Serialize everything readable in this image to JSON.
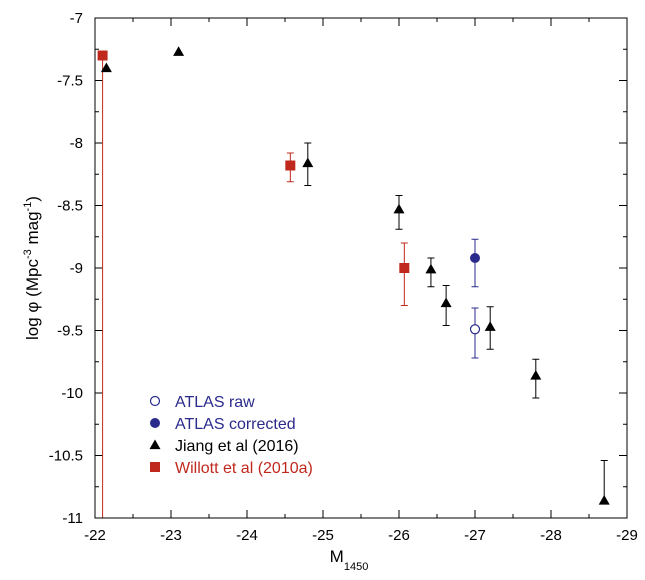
{
  "colors": {
    "atlas": "#2a2a8c",
    "jiang": "#000000",
    "willott": "#c0281e"
  },
  "chart_data": {
    "type": "scatter",
    "xlabel_main": "M",
    "xlabel_sub": "1450",
    "ylabel": "log φ (Mpc",
    "ylabel_sup1": "-3",
    "ylabel_mid": " mag",
    "ylabel_sup2": "-1",
    "ylabel_end": ")",
    "xlim": [
      -22,
      -29
    ],
    "ylim": [
      -11,
      -7
    ],
    "x_ticks": [
      -22,
      -23,
      -24,
      -25,
      -26,
      -27,
      -28,
      -29
    ],
    "y_ticks": [
      -7,
      -7.5,
      -8,
      -8.5,
      -9,
      -9.5,
      -10,
      -10.5,
      -11
    ],
    "x_tick_labels": [
      "-22",
      "-23",
      "-24",
      "-25",
      "-26",
      "-27",
      "-28",
      "-29"
    ],
    "y_tick_labels": [
      "-7",
      "-7.5",
      "-8",
      "-8.5",
      "-9",
      "-9.5",
      "-10",
      "-10.5",
      "-11"
    ],
    "legend_position": "bottom-left",
    "series": [
      {
        "name": "ATLAS raw",
        "marker": "open-circle",
        "color": "#2a2a8c",
        "points": [
          {
            "x": -27.0,
            "y": -9.49,
            "y_low": -9.72,
            "y_high": -9.32
          }
        ]
      },
      {
        "name": "ATLAS corrected",
        "marker": "filled-circle",
        "color": "#2a2a8c",
        "points": [
          {
            "x": -27.0,
            "y": -8.92,
            "y_low": -9.15,
            "y_high": -8.77
          }
        ]
      },
      {
        "name": "Jiang et al (2016)",
        "marker": "triangle",
        "color": "#000000",
        "points": [
          {
            "x": -22.15,
            "y": -7.4,
            "y_low": null,
            "y_high": null
          },
          {
            "x": -23.1,
            "y": -7.27,
            "y_low": null,
            "y_high": null
          },
          {
            "x": -24.8,
            "y": -8.16,
            "y_low": -8.34,
            "y_high": -8.0
          },
          {
            "x": -26.0,
            "y": -8.53,
            "y_low": -8.69,
            "y_high": -8.42
          },
          {
            "x": -26.42,
            "y": -9.01,
            "y_low": -9.15,
            "y_high": -8.92
          },
          {
            "x": -26.62,
            "y": -9.28,
            "y_low": -9.46,
            "y_high": -9.14
          },
          {
            "x": -27.2,
            "y": -9.47,
            "y_low": -9.65,
            "y_high": -9.31
          },
          {
            "x": -27.8,
            "y": -9.86,
            "y_low": -10.04,
            "y_high": -9.73
          },
          {
            "x": -28.7,
            "y": -10.86,
            "y_low": null,
            "y_high": -10.54
          }
        ]
      },
      {
        "name": "Willott et al (2010a)",
        "marker": "square",
        "color": "#c0281e",
        "points": [
          {
            "x": -22.1,
            "y": -7.3,
            "y_low": -11.0,
            "y_high": -7.3
          },
          {
            "x": -24.57,
            "y": -8.18,
            "y_low": -8.31,
            "y_high": -8.08
          },
          {
            "x": -26.07,
            "y": -9.0,
            "y_low": -9.3,
            "y_high": -8.8
          }
        ]
      }
    ]
  }
}
